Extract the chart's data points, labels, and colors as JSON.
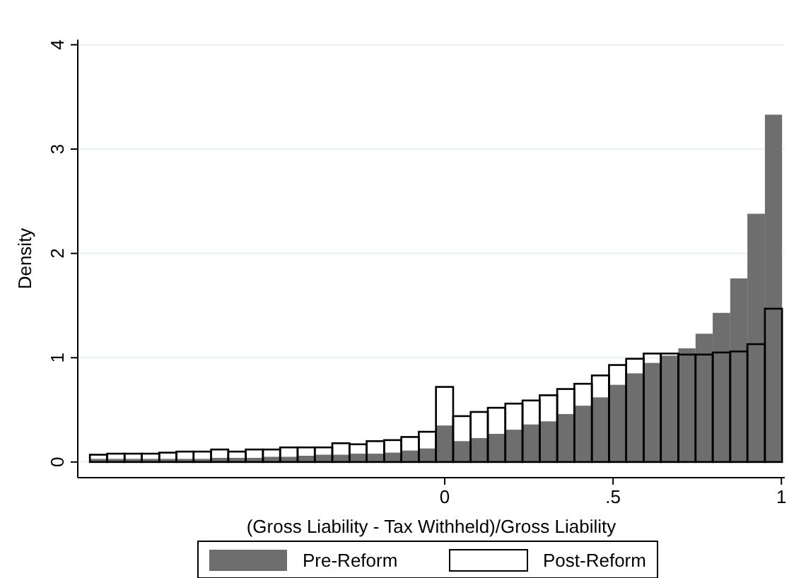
{
  "chart_data": {
    "type": "histogram",
    "xlabel": "(Gross Liability - Tax Withheld)/Gross Liability",
    "ylabel": "Density",
    "bins": [
      -1.054,
      -1.003,
      -0.951,
      -0.9,
      -0.848,
      -0.797,
      -0.746,
      -0.694,
      -0.643,
      -0.591,
      -0.54,
      -0.489,
      -0.437,
      -0.386,
      -0.334,
      -0.283,
      -0.232,
      -0.18,
      -0.129,
      -0.077,
      -0.026,
      0.025,
      0.077,
      0.128,
      0.18,
      0.231,
      0.282,
      0.334,
      0.385,
      0.437,
      0.488,
      0.539,
      0.591,
      0.642,
      0.694,
      0.745,
      0.796,
      0.848,
      0.899,
      0.951,
      1.002
    ],
    "series": [
      {
        "name": "Pre-Reform",
        "color": "#6e6e6e",
        "values": [
          0.03,
          0.03,
          0.03,
          0.03,
          0.03,
          0.03,
          0.03,
          0.04,
          0.04,
          0.04,
          0.05,
          0.05,
          0.06,
          0.07,
          0.07,
          0.08,
          0.08,
          0.09,
          0.11,
          0.13,
          0.35,
          0.2,
          0.23,
          0.27,
          0.31,
          0.36,
          0.39,
          0.46,
          0.54,
          0.62,
          0.74,
          0.85,
          0.95,
          1.02,
          1.09,
          1.23,
          1.43,
          1.76,
          2.38,
          3.33
        ]
      },
      {
        "name": "Post-Reform",
        "color": "#000000",
        "values": [
          0.07,
          0.08,
          0.08,
          0.08,
          0.09,
          0.1,
          0.1,
          0.12,
          0.1,
          0.12,
          0.12,
          0.14,
          0.14,
          0.14,
          0.18,
          0.17,
          0.2,
          0.21,
          0.24,
          0.29,
          0.72,
          0.44,
          0.48,
          0.52,
          0.56,
          0.59,
          0.64,
          0.7,
          0.75,
          0.83,
          0.93,
          0.99,
          1.04,
          1.04,
          1.03,
          1.03,
          1.05,
          1.06,
          1.13,
          1.47
        ]
      }
    ],
    "xlim": [
      -1.09,
      1.01
    ],
    "xticks": [
      0,
      {
        "value": 0.5,
        "label": ".5"
      },
      1
    ],
    "ylim": [
      -0.15,
      4.05
    ],
    "yticks": [
      0,
      1,
      2,
      3,
      4
    ],
    "grid": "y",
    "legend": "bottom"
  }
}
